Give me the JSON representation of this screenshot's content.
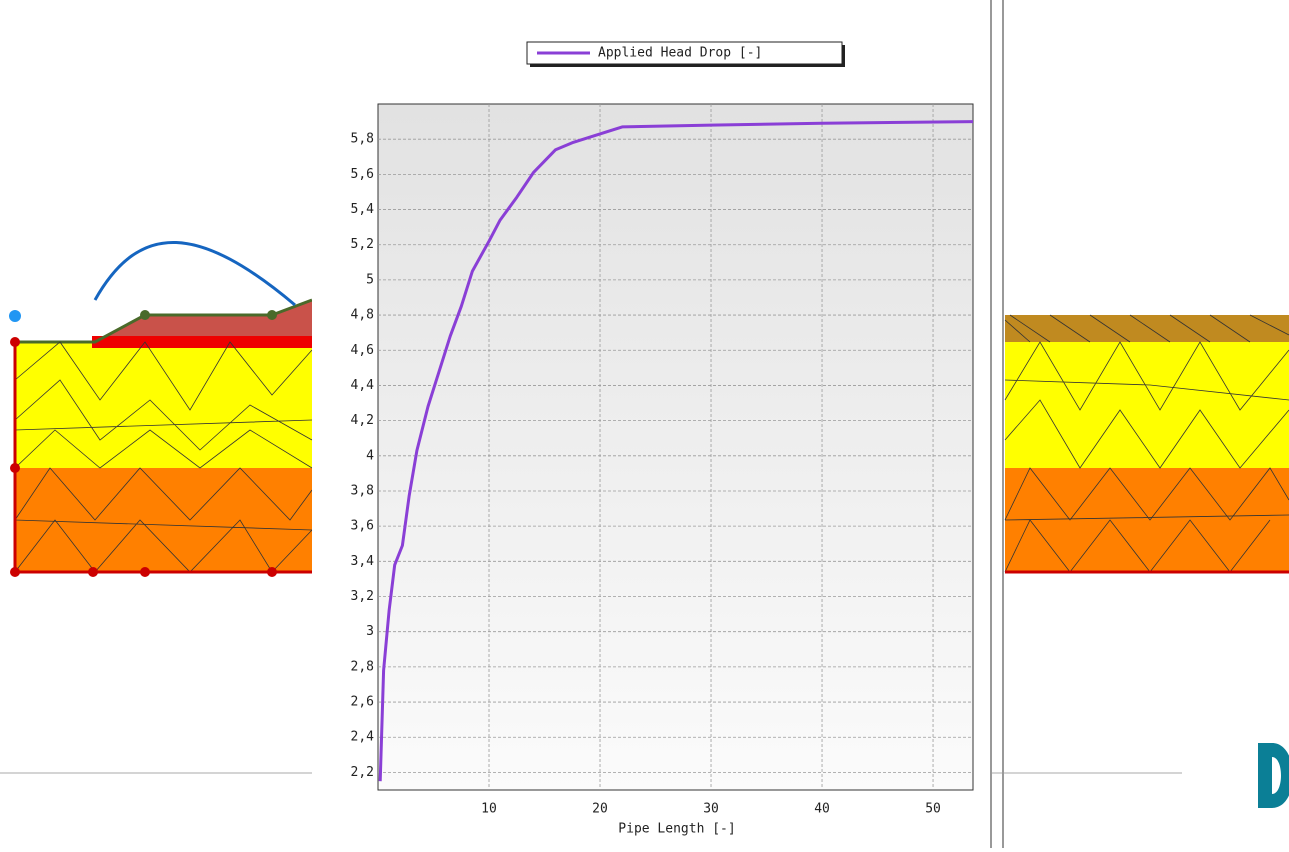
{
  "chart_data": {
    "type": "line",
    "x_label": "Pipe Length [-]",
    "x": [
      0.2,
      0.5,
      1,
      1.5,
      2.2,
      2.8,
      3.5,
      4.5,
      5.5,
      6.5,
      7.5,
      8.5,
      10,
      11,
      12.5,
      14,
      16,
      17.5,
      22,
      30,
      40,
      53.6
    ],
    "series": [
      {
        "name": "Applied Head Drop [-]",
        "color": "#8a3fd6",
        "values": [
          2.15,
          2.78,
          3.12,
          3.38,
          3.49,
          3.77,
          4.03,
          4.28,
          4.48,
          4.68,
          4.85,
          5.05,
          5.22,
          5.34,
          5.47,
          5.61,
          5.74,
          5.78,
          5.87,
          5.88,
          5.89,
          5.9
        ]
      }
    ],
    "xlim": [
      0,
      53.6
    ],
    "ylim": [
      2.1,
      6.0
    ],
    "xticks": [
      10,
      20,
      30,
      40,
      50
    ],
    "yticks": [
      {
        "value": 2.2,
        "label": "2,2"
      },
      {
        "value": 2.4,
        "label": "2,4"
      },
      {
        "value": 2.6,
        "label": "2,6"
      },
      {
        "value": 2.8,
        "label": "2,8"
      },
      3,
      {
        "value": 3.2,
        "label": "3,2"
      },
      {
        "value": 3.4,
        "label": "3,4"
      },
      {
        "value": 3.6,
        "label": "3,6"
      },
      {
        "value": 3.8,
        "label": "3,8"
      },
      4,
      {
        "value": 4.2,
        "label": "4,2"
      },
      {
        "value": 4.4,
        "label": "4,4"
      },
      {
        "value": 4.6,
        "label": "4,6"
      },
      {
        "value": 4.8,
        "label": "4,8"
      },
      5,
      {
        "value": 5.2,
        "label": "5,2"
      },
      {
        "value": 5.4,
        "label": "5,4"
      },
      {
        "value": 5.6,
        "label": "5,6"
      },
      {
        "value": 5.8,
        "label": "5,8"
      }
    ],
    "grid": true
  }
}
